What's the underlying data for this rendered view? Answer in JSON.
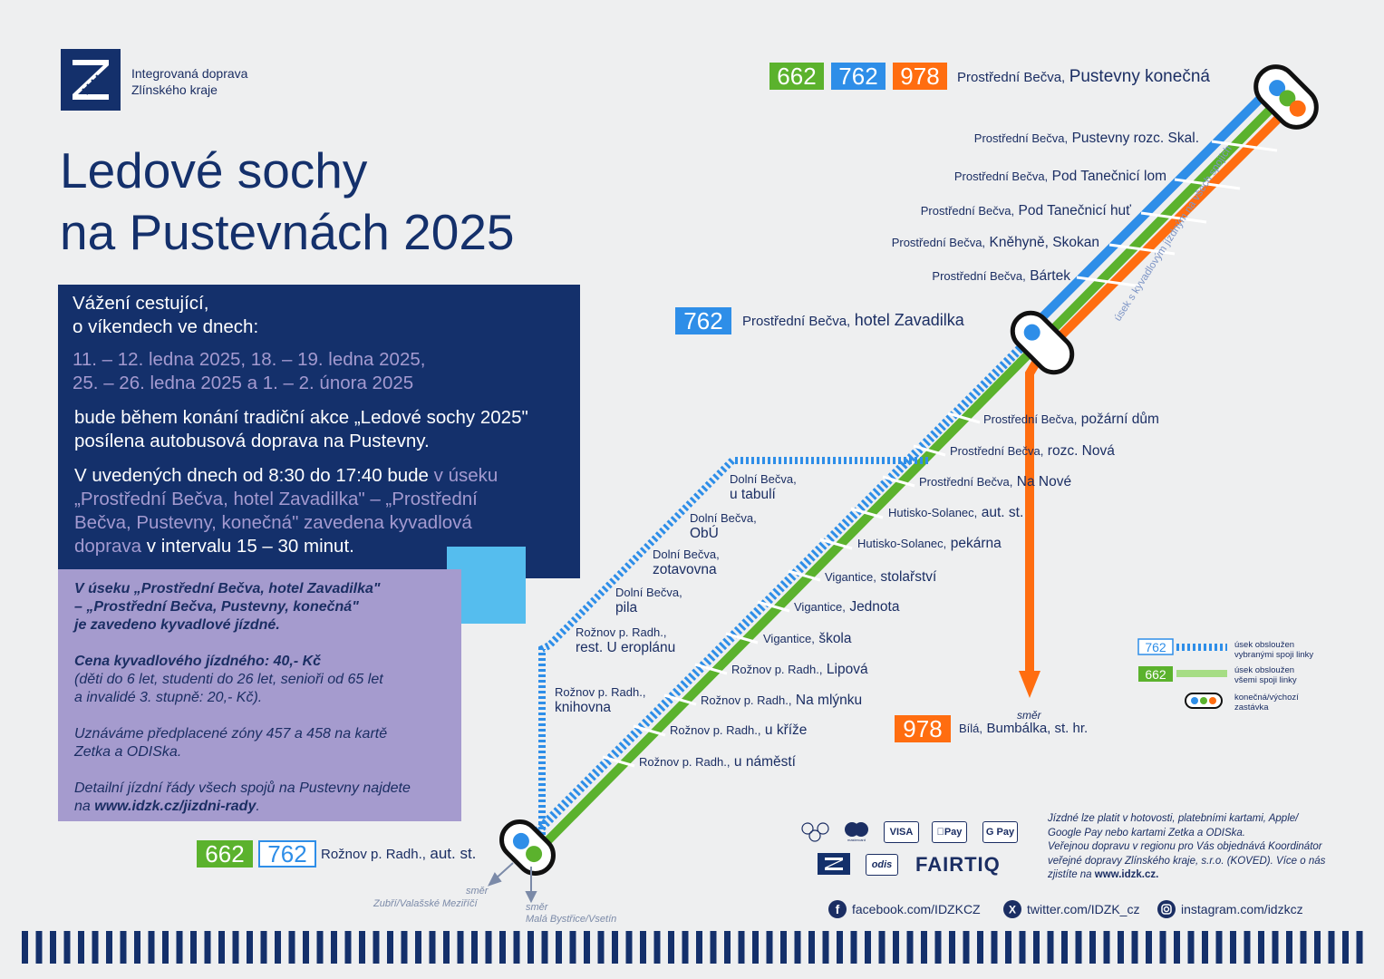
{
  "header": {
    "org_line1": "Integrovaná doprava",
    "org_line2": "Zlínského kraje"
  },
  "title": {
    "line1": "Ledové sochy",
    "line2": "na Pustevnách 2025"
  },
  "info": {
    "greeting1": "Vážení cestující,",
    "greeting2": "o víkendech ve dnech:",
    "dates1": "11. – 12. ledna 2025, 18. – 19. ledna 2025,",
    "dates2": "25. – 26. ledna 2025 a 1. – 2. února 2025",
    "text1": "bude během konání tradiční akce „Ledové sochy 2025\"",
    "text2": "posílena autobusová doprava na Pustevny.",
    "text3a": "V uvedených dnech od 8:30 do 17:40 bude ",
    "text3b": "v úseku",
    "text4": "„Prostřední Bečva, hotel Zavadilka\" – „Prostřední",
    "text5": "Bečva, Pustevny, konečná\" zavedena kyvadlová",
    "text6a": "doprava",
    "text6b": " v intervalu 15 – 30 minut."
  },
  "fare": {
    "p1": "V úseku „Prostřední Bečva, hotel Zavadilka\"",
    "p2": "– „Prostřední Bečva, Pustevny, konečná\"",
    "p3": "je zavedeno kyvadlové jízdné.",
    "p4": "Cena kyvadlového jízdného: 40,- Kč",
    "p5": "(děti do 6 let, studenti do 26 let, senioři od 65 let",
    "p6": "a invalidé 3. stupně: 20,- Kč).",
    "p7": "Uznáváme předplacené zóny 457 a 458 na kartě",
    "p8": "Zetka a ODISka.",
    "p9": "Detailní jízdní řády všech spojů na Pustevny najdete",
    "p10a": "na ",
    "p10b": "www.idzk.cz/jizdni-rady",
    "p10c": "."
  },
  "lines": {
    "l662": "662",
    "l762": "762",
    "l978": "978"
  },
  "colors": {
    "green": "#5bb22d",
    "blue": "#2e8ee8",
    "orange": "#ff6d10",
    "navy": "#14306b",
    "lavender": "#a59bce",
    "sky": "#55bdee"
  },
  "terminals": {
    "pustevny": {
      "small": "Prostřední Bečva,",
      "big": "Pustevny konečná"
    },
    "zavadilka": {
      "small": "Prostřední Bečva,",
      "big": "hotel Zavadilka"
    },
    "roznov": {
      "small": "Rožnov p. Radh.,",
      "big": "aut. st."
    },
    "bila": {
      "small": "Bílá,",
      "big": "Bumbálka, st. hr."
    }
  },
  "stops_upper": [
    {
      "small": "Prostřední Bečva,",
      "big": "Pustevny rozc. Skal."
    },
    {
      "small": "Prostřední Bečva,",
      "big": "Pod Tanečnicí lom"
    },
    {
      "small": "Prostřední Bečva,",
      "big": "Pod Tanečnicí huť"
    },
    {
      "small": "Prostřední Bečva,",
      "big": "Kněhyně, Skokan"
    },
    {
      "small": "Prostřední Bečva,",
      "big": "Bártek"
    }
  ],
  "stops_main": [
    {
      "small": "Prostřední Bečva,",
      "big": "požární dům"
    },
    {
      "small": "Prostřední Bečva,",
      "big": "rozc. Nová"
    },
    {
      "small": "Prostřední Bečva,",
      "big": "Na Nové"
    },
    {
      "small": "Hutisko-Solanec,",
      "big": "aut. st."
    },
    {
      "small": "Hutisko-Solanec,",
      "big": "pekárna"
    },
    {
      "small": "Vigantice,",
      "big": "stolařství"
    },
    {
      "small": "Vigantice,",
      "big": "Jednota"
    },
    {
      "small": "Vigantice,",
      "big": "škola"
    },
    {
      "small": "Rožnov p. Radh.,",
      "big": "Lipová"
    },
    {
      "small": "Rožnov p. Radh.,",
      "big": "Na mlýnku"
    },
    {
      "small": "Rožnov p. Radh.,",
      "big": "u kříže"
    },
    {
      "small": "Rožnov p. Radh.,",
      "big": "u náměstí"
    }
  ],
  "stops_branch": [
    {
      "small": "Dolní Bečva,",
      "big": "u tabulí"
    },
    {
      "small": "Dolní Bečva,",
      "big": "ObÚ"
    },
    {
      "small": "Dolní Bečva,",
      "big": "zotavovna"
    },
    {
      "small": "Dolní Bečva,",
      "big": "pila"
    },
    {
      "small": "Rožnov p. Radh.,",
      "big": "rest. U eroplánu"
    },
    {
      "small": "Rožnov p. Radh.,",
      "big": "knihovna"
    }
  ],
  "section_label": "úsek s kyvadlovým jízdným na všech spojích",
  "direction": {
    "smer": "směr",
    "zubri": "Zubří/Valašské Meziříčí",
    "mala": "Malá Bystřice/Vsetín"
  },
  "legend": {
    "item1a": "úsek obsloužen",
    "item1b": "vybranými spoji linky",
    "item2a": "úsek obsloužen",
    "item2b": "všemi spoji linky",
    "item3a": "konečná/výchozí",
    "item3b": "zastávka"
  },
  "payment": {
    "visa": "VISA",
    "apple": "Pay",
    "google": "G Pay",
    "odis": "odis",
    "fairtiq": "FAIRTIQ",
    "mastercard": "mastercard"
  },
  "note": {
    "n1": "Jízdné lze platit v hotovosti, platebními kartami, Apple/",
    "n2": "Google Pay nebo kartami Zetka a ODISka.",
    "n3": "Veřejnou dopravu v regionu pro Vás objednává Koordinátor",
    "n4": "veřejné dopravy Zlínského kraje, s.r.o. (KOVED). Více o nás",
    "n5a": "zjistíte na ",
    "n5b": "www.idzk.cz."
  },
  "social": {
    "facebook": "facebook.com/IDZKCZ",
    "twitter": "twitter.com/IDZK_cz",
    "instagram": "instagram.com/idzkcz"
  }
}
